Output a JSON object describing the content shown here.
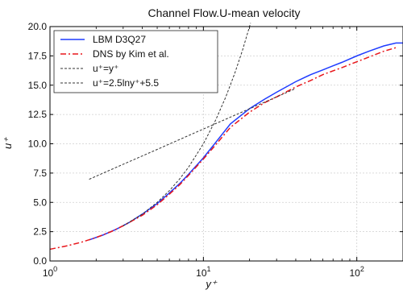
{
  "chart_data": {
    "type": "line",
    "title": "Channel Flow.U-mean velocity",
    "xlabel": "y⁺",
    "ylabel": "u⁺",
    "xscale": "log",
    "xlim": [
      1,
      200
    ],
    "ylim": [
      0,
      20
    ],
    "grid": true,
    "legend_position": "top-left",
    "x_ticks": [
      {
        "value": 1,
        "base": "10",
        "exp": "0"
      },
      {
        "value": 10,
        "base": "10",
        "exp": "1"
      },
      {
        "value": 100,
        "base": "10",
        "exp": "2"
      }
    ],
    "y_ticks": [
      "0.0",
      "2.5",
      "5.0",
      "7.5",
      "10.0",
      "12.5",
      "15.0",
      "17.5",
      "20.0"
    ],
    "series": [
      {
        "name": "LBM D3Q27",
        "color": "#1f3cff",
        "dash": "solid",
        "x": [
          1.8,
          2.2,
          2.7,
          3.3,
          4,
          5,
          6,
          7,
          8,
          10,
          12,
          15,
          20,
          25,
          30,
          40,
          50,
          60,
          70,
          80,
          100,
          120,
          150,
          180,
          200
        ],
        "y": [
          1.8,
          2.2,
          2.7,
          3.3,
          4.0,
          4.9,
          5.8,
          6.6,
          7.4,
          8.8,
          10.1,
          11.7,
          13.0,
          13.8,
          14.4,
          15.3,
          15.9,
          16.3,
          16.65,
          16.95,
          17.5,
          17.9,
          18.35,
          18.6,
          18.6
        ]
      },
      {
        "name": "DNS by Kim et al.",
        "color": "#e8161b",
        "dash": "dashdot",
        "x": [
          1,
          1.3,
          1.6,
          2,
          2.5,
          3,
          4,
          5,
          6,
          7,
          8,
          10,
          12,
          15,
          20,
          25,
          30,
          40,
          50,
          60,
          80,
          100,
          120,
          150,
          180
        ],
        "y": [
          1.0,
          1.3,
          1.6,
          2.0,
          2.5,
          3.0,
          3.9,
          4.8,
          5.7,
          6.5,
          7.3,
          8.7,
          9.9,
          11.4,
          12.7,
          13.5,
          14.0,
          14.85,
          15.4,
          15.9,
          16.5,
          17.0,
          17.4,
          17.9,
          18.2
        ]
      },
      {
        "name": "u⁺=y⁺",
        "color": "#333333",
        "dash": "dashed",
        "x": [
          3,
          4,
          5,
          6,
          7,
          8,
          10,
          12,
          14,
          16,
          18,
          20.3
        ],
        "y": [
          3,
          4,
          5,
          6,
          7,
          8,
          10,
          12,
          14,
          16,
          18,
          20.3
        ]
      },
      {
        "name": "u⁺=2.5lny⁺+5.5",
        "color": "#333333",
        "dash": "dashed",
        "x": [
          1.8,
          3,
          5,
          10,
          20,
          30,
          40
        ],
        "y": [
          6.97,
          8.25,
          9.52,
          11.26,
          12.99,
          14.0,
          14.72
        ]
      }
    ]
  },
  "legend": {
    "items": [
      {
        "text": "LBM D3Q27",
        "color": "#1f3cff",
        "dash": "solid"
      },
      {
        "text": "DNS by Kim et al.",
        "color": "#e8161b",
        "dash": "dashdot"
      },
      {
        "text": "u⁺=y⁺",
        "color": "#333333",
        "dash": "dashed"
      },
      {
        "text": "u⁺=2.5lny⁺+5.5",
        "color": "#333333",
        "dash": "dashed"
      }
    ]
  }
}
